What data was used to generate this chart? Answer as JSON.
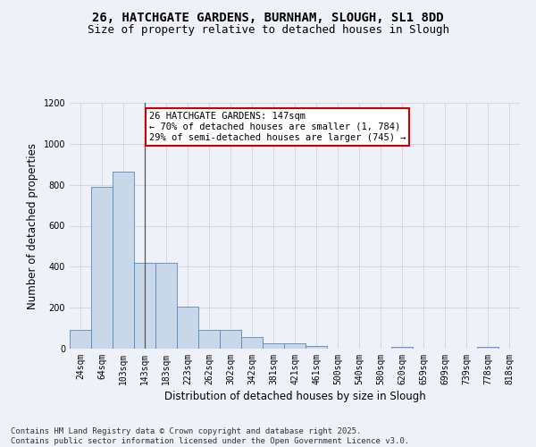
{
  "title_line1": "26, HATCHGATE GARDENS, BURNHAM, SLOUGH, SL1 8DD",
  "title_line2": "Size of property relative to detached houses in Slough",
  "xlabel": "Distribution of detached houses by size in Slough",
  "ylabel": "Number of detached properties",
  "annotation_title": "26 HATCHGATE GARDENS: 147sqm",
  "annotation_line2": "← 70% of detached houses are smaller (1, 784)",
  "annotation_line3": "29% of semi-detached houses are larger (745) →",
  "categories": [
    "24sqm",
    "64sqm",
    "103sqm",
    "143sqm",
    "183sqm",
    "223sqm",
    "262sqm",
    "302sqm",
    "342sqm",
    "381sqm",
    "421sqm",
    "461sqm",
    "500sqm",
    "540sqm",
    "580sqm",
    "620sqm",
    "659sqm",
    "699sqm",
    "739sqm",
    "778sqm",
    "818sqm"
  ],
  "values": [
    90,
    790,
    865,
    420,
    420,
    205,
    90,
    90,
    55,
    25,
    25,
    15,
    0,
    0,
    0,
    10,
    0,
    0,
    0,
    10,
    0
  ],
  "bar_color": "#c8d8e8",
  "bar_edge_color": "#5588bb",
  "vline_color": "#555555",
  "vline_x": 3,
  "annotation_box_edge_color": "#cc0000",
  "annotation_box_face_color": "#ffffff",
  "grid_color": "#cccccc",
  "background_color": "#eef2f8",
  "ylim": [
    0,
    1200
  ],
  "yticks": [
    0,
    200,
    400,
    600,
    800,
    1000,
    1200
  ],
  "footer_line1": "Contains HM Land Registry data © Crown copyright and database right 2025.",
  "footer_line2": "Contains public sector information licensed under the Open Government Licence v3.0.",
  "title_fontsize": 10,
  "subtitle_fontsize": 9,
  "tick_fontsize": 7,
  "label_fontsize": 8.5,
  "annotation_fontsize": 7.5,
  "footer_fontsize": 6.5
}
